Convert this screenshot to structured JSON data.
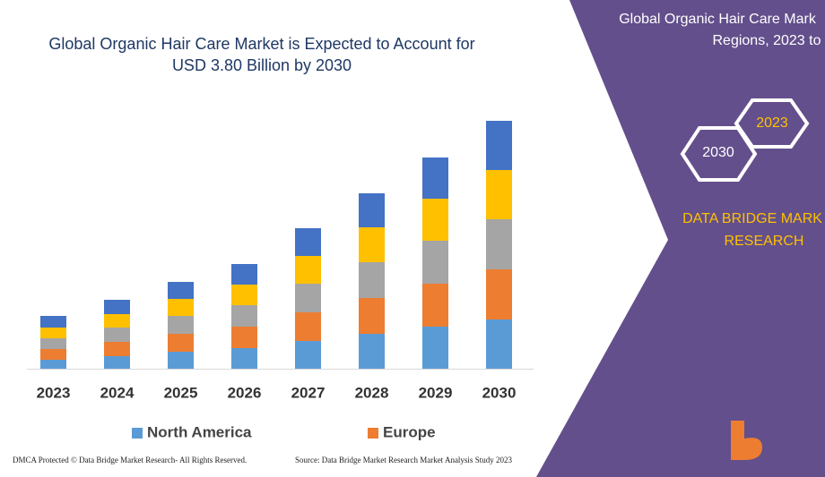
{
  "chart_data": {
    "type": "stacked-bar",
    "title": [
      "Global Organic Hair Care Market is Expected to Account for",
      "USD 3.80 Billion by 2030"
    ],
    "categories": [
      "2023",
      "2024",
      "2025",
      "2026",
      "2027",
      "2028",
      "2029",
      "2030"
    ],
    "series": [
      {
        "name": "North America",
        "color": "#5b9bd5",
        "values": [
          10,
          14,
          19,
          23,
          31,
          39,
          47,
          55
        ]
      },
      {
        "name": "Europe",
        "color": "#ed7d31",
        "values": [
          12,
          16,
          20,
          24,
          32,
          40,
          48,
          56
        ]
      },
      {
        "color": "#a5a5a5",
        "values": [
          12,
          16,
          20,
          24,
          32,
          40,
          48,
          56
        ]
      },
      {
        "color": "#ffc000",
        "values": [
          12,
          15,
          19,
          23,
          31,
          39,
          47,
          55
        ]
      },
      {
        "color": "#4472c4",
        "values": [
          13,
          16,
          19,
          23,
          31,
          38,
          46,
          55
        ]
      }
    ],
    "legend": "bottom"
  },
  "footer": {
    "left": "DMCA Protected © Data Bridge Market Research- All Rights Reserved.",
    "right": "Source: Data Bridge Market Research Market Analysis Study 2023"
  },
  "panel": {
    "heading": [
      "Global Organic Hair Care Mark",
      "Regions, 2023 to"
    ],
    "hexagons": [
      "2023",
      "2030"
    ],
    "brand": [
      "DATA BRIDGE MARK",
      "RESEARCH"
    ]
  }
}
